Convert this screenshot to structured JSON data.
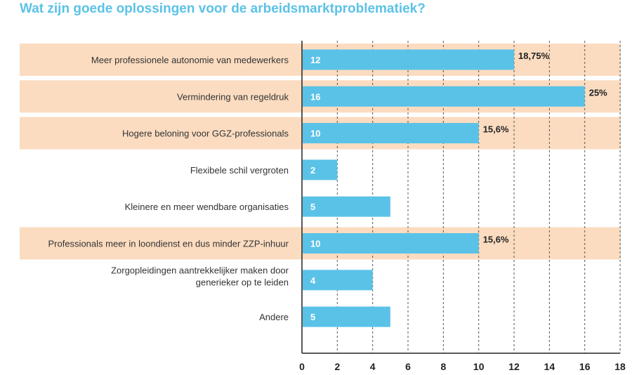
{
  "colors": {
    "title": "#5bc2e7",
    "bar": "#5bc2e7",
    "highlight_band": "#fbdcc0",
    "axis": "#222222",
    "grid": "#555555"
  },
  "chart_data": {
    "type": "bar",
    "orientation": "horizontal",
    "title": "Wat zijn goede oplossingen voor de arbeidsmarktproblematiek?",
    "xlabel": "",
    "ylabel": "",
    "xlim": [
      0,
      18
    ],
    "xticks": [
      0,
      2,
      4,
      6,
      8,
      10,
      12,
      14,
      16,
      18
    ],
    "grid": "vertical dashed",
    "categories": [
      [
        "Meer professionele autonomie van medewerkers"
      ],
      [
        "Vermindering van regeldruk"
      ],
      [
        "Hogere beloning voor GGZ-professionals"
      ],
      [
        "Flexibele schil vergroten"
      ],
      [
        "Kleinere en meer wendbare organisaties"
      ],
      [
        "Professionals meer in loondienst en dus minder ZZP-inhuur"
      ],
      [
        "Zorgopleidingen aantrekkelijker maken door",
        "generieker op te leiden"
      ],
      [
        "Andere"
      ]
    ],
    "values": [
      12,
      16,
      10,
      2,
      5,
      10,
      4,
      5
    ],
    "value_labels": [
      "12",
      "16",
      "10",
      "2",
      "5",
      "10",
      "4",
      "5"
    ],
    "percent_labels": [
      "18,75%",
      "25%",
      "15,6%",
      "",
      "",
      "15,6%",
      "",
      ""
    ],
    "highlighted": [
      true,
      true,
      true,
      false,
      false,
      true,
      false,
      false
    ]
  }
}
